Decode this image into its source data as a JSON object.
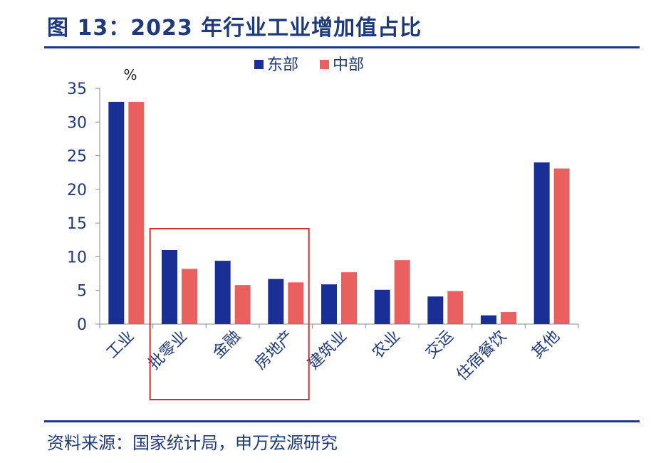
{
  "header": {
    "title": "图 13：2023 年行业工业增加值占比"
  },
  "footer": {
    "source": "资料来源：国家统计局，申万宏源研究"
  },
  "colors": {
    "east": "#1a2f96",
    "central": "#e8615e",
    "highlight_box": "#d42d2d",
    "axis": "#8a8a8a"
  },
  "chart_data": {
    "type": "bar",
    "unit_label": "%",
    "categories": [
      "工业",
      "批零业",
      "金融",
      "房地产",
      "建筑业",
      "农业",
      "交运",
      "住宿餐饮",
      "其他"
    ],
    "series": [
      {
        "name": "东部",
        "values": [
          33,
          11,
          9.4,
          6.7,
          5.9,
          5.1,
          4.1,
          1.3,
          24
        ]
      },
      {
        "name": "中部",
        "values": [
          33,
          8.2,
          5.8,
          6.2,
          7.7,
          9.5,
          4.9,
          1.8,
          23.1
        ]
      }
    ],
    "yticks": [
      0,
      5,
      10,
      15,
      20,
      25,
      30,
      35
    ],
    "ylim": [
      0,
      35
    ],
    "legend_position": "top-center",
    "grid": false,
    "highlighted_categories": [
      "批零业",
      "金融",
      "房地产"
    ]
  }
}
